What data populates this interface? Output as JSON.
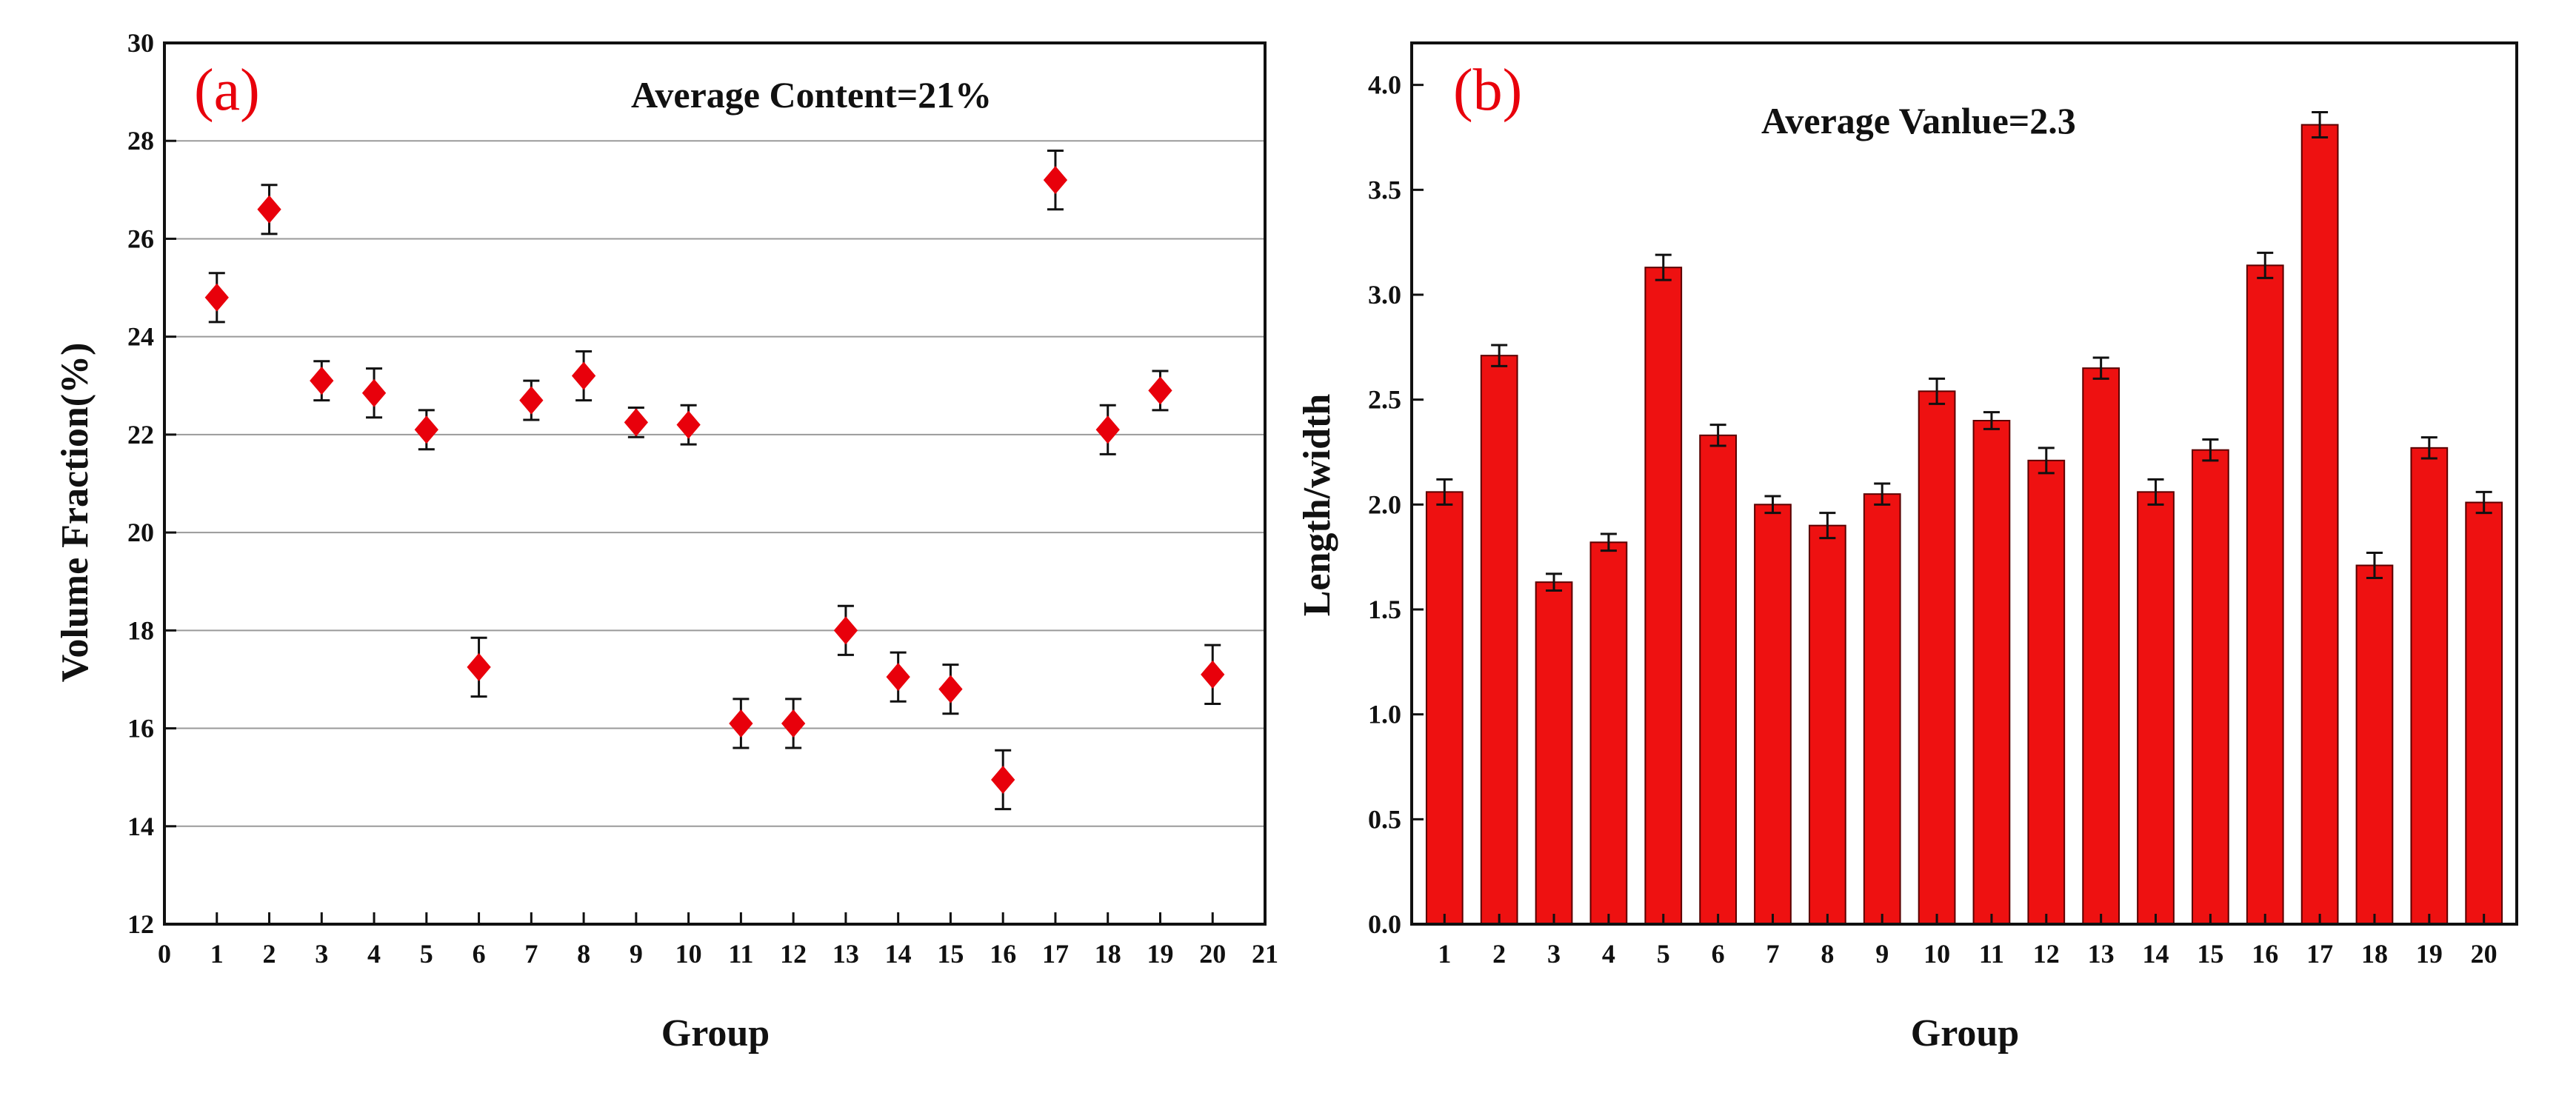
{
  "colors": {
    "marker": "#e8000b",
    "bar": "#ee1111",
    "bar_edge": "#5a0000",
    "axis": "#111111",
    "grid": "#9a9a9a",
    "panel_label": "#e8000b"
  },
  "chart_data": [
    {
      "type": "scatter",
      "panel_label": "(a)",
      "annotation": "Average Content=21%",
      "xlabel": "Group",
      "ylabel": "Volume Fraction(%)",
      "xlim": [
        0,
        21
      ],
      "ylim": [
        12,
        30
      ],
      "xticks": [
        0,
        1,
        2,
        3,
        4,
        5,
        6,
        7,
        8,
        9,
        10,
        11,
        12,
        13,
        14,
        15,
        16,
        17,
        18,
        19,
        20,
        21
      ],
      "yticks": [
        12,
        14,
        16,
        18,
        20,
        22,
        24,
        26,
        28,
        30
      ],
      "grid": "horizontal",
      "marker": "diamond",
      "x": [
        1,
        2,
        3,
        4,
        5,
        6,
        7,
        8,
        9,
        10,
        11,
        12,
        13,
        14,
        15,
        16,
        17,
        18,
        19,
        20
      ],
      "y": [
        24.8,
        26.6,
        23.1,
        22.85,
        22.1,
        17.25,
        22.7,
        23.2,
        22.25,
        22.2,
        16.1,
        16.1,
        18.0,
        17.05,
        16.8,
        14.95,
        27.2,
        22.1,
        22.9,
        17.1
      ],
      "yerr": [
        0.5,
        0.5,
        0.4,
        0.5,
        0.4,
        0.6,
        0.4,
        0.5,
        0.3,
        0.4,
        0.5,
        0.5,
        0.5,
        0.5,
        0.5,
        0.6,
        0.6,
        0.5,
        0.4,
        0.6
      ]
    },
    {
      "type": "bar",
      "panel_label": "(b)",
      "annotation": "Average Vanlue=2.3",
      "xlabel": "Group",
      "ylabel": "Length/width",
      "ylim": [
        0,
        4.2
      ],
      "yticks": [
        "0.0",
        "0.5",
        "1.0",
        "1.5",
        "2.0",
        "2.5",
        "3.0",
        "3.5",
        "4.0"
      ],
      "categories": [
        "1",
        "2",
        "3",
        "4",
        "5",
        "6",
        "7",
        "8",
        "9",
        "10",
        "11",
        "12",
        "13",
        "14",
        "15",
        "16",
        "17",
        "18",
        "19",
        "20"
      ],
      "values": [
        2.06,
        2.71,
        1.63,
        1.82,
        3.13,
        2.33,
        2.0,
        1.9,
        2.05,
        2.54,
        2.4,
        2.21,
        2.65,
        2.06,
        2.26,
        3.14,
        3.81,
        1.71,
        2.27,
        2.01
      ],
      "yerr": [
        0.06,
        0.05,
        0.04,
        0.04,
        0.06,
        0.05,
        0.04,
        0.06,
        0.05,
        0.06,
        0.04,
        0.06,
        0.05,
        0.06,
        0.05,
        0.06,
        0.06,
        0.06,
        0.05,
        0.05
      ]
    }
  ]
}
